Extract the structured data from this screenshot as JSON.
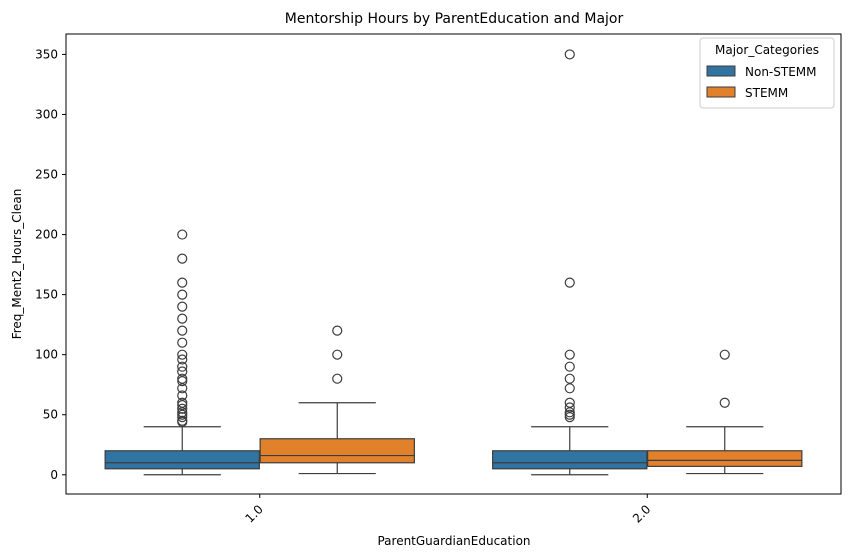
{
  "chart_data": {
    "type": "box",
    "title": "Mentorship Hours by ParentEducation and Major",
    "xlabel": "ParentGuardianEducation",
    "ylabel": "Freq_Ment2_Hours_Clean",
    "categories": [
      "1.0",
      "2.0"
    ],
    "ylim": [
      -16,
      367
    ],
    "yticks": [
      0,
      50,
      100,
      150,
      200,
      250,
      300,
      350
    ],
    "grid": false,
    "legend": {
      "title": "Major_Categories",
      "position": "top-right",
      "entries": [
        "Non-STEMM",
        "STEMM"
      ]
    },
    "series": [
      {
        "name": "Non-STEMM",
        "color": "#3274a1",
        "boxes": [
          {
            "category": "1.0",
            "whisker_low": 0,
            "q1": 5,
            "median": 10,
            "q3": 20,
            "whisker_high": 40,
            "outliers": [
              44,
              45,
              48,
              50,
              52,
              55,
              58,
              60,
              66,
              72,
              78,
              80,
              86,
              90,
              96,
              100,
              110,
              120,
              130,
              140,
              150,
              160,
              180,
              200
            ]
          },
          {
            "category": "2.0",
            "whisker_low": 0,
            "q1": 5,
            "median": 10,
            "q3": 20,
            "whisker_high": 40,
            "outliers": [
              48,
              50,
              52,
              56,
              60,
              72,
              80,
              90,
              100,
              160,
              350
            ]
          }
        ]
      },
      {
        "name": "STEMM",
        "color": "#e1812c",
        "boxes": [
          {
            "category": "1.0",
            "whisker_low": 1,
            "q1": 10,
            "median": 16,
            "q3": 30,
            "whisker_high": 60,
            "outliers": [
              80,
              100,
              120
            ]
          },
          {
            "category": "2.0",
            "whisker_low": 1,
            "q1": 7,
            "median": 12,
            "q3": 20,
            "whisker_high": 40,
            "outliers": [
              60,
              100
            ]
          }
        ]
      }
    ]
  }
}
